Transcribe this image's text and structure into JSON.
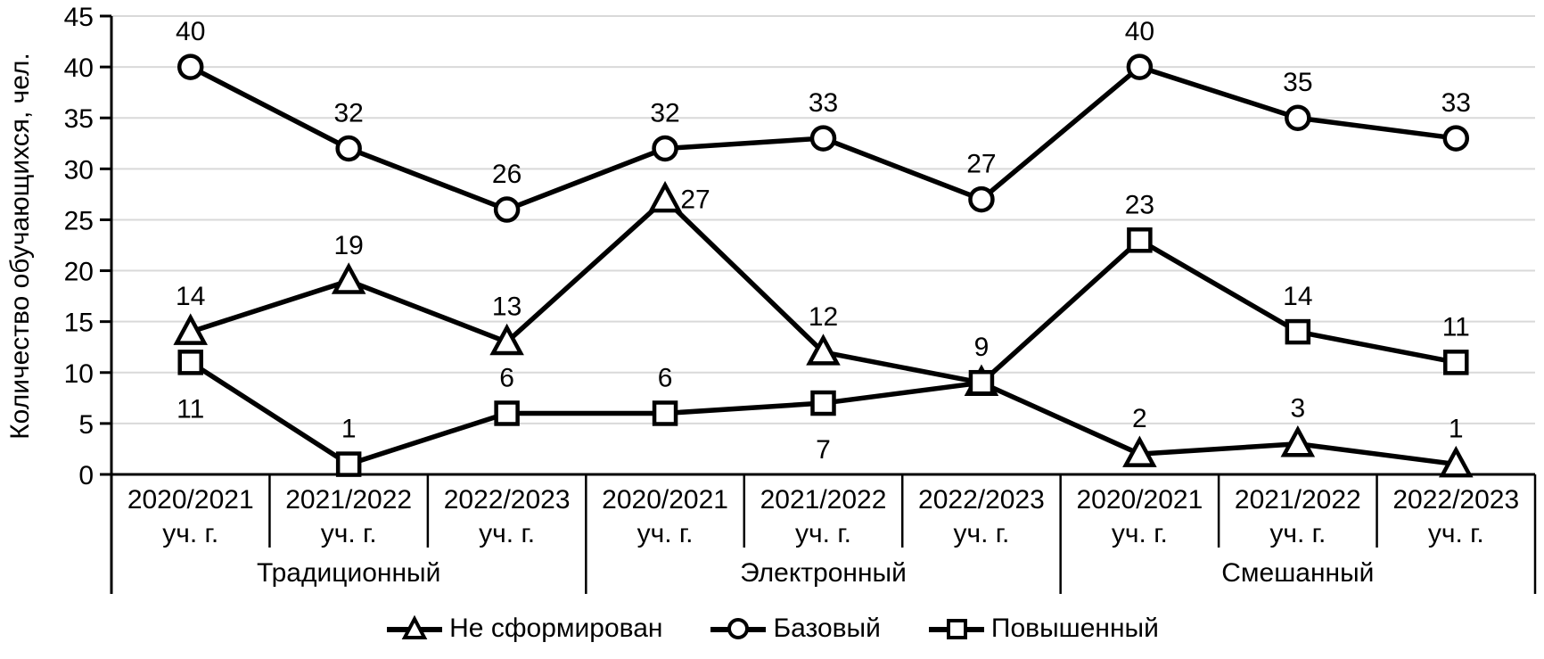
{
  "chart_data": {
    "type": "line",
    "title": "",
    "ylabel": "Количество обучающихся, чел.",
    "xlabel": "",
    "ylim": [
      0,
      45
    ],
    "ytick_step": 5,
    "y_tick_labels": [
      0,
      5,
      10,
      15,
      20,
      25,
      30,
      35,
      40,
      45
    ],
    "grid": true,
    "legend_position": "bottom",
    "groups": [
      {
        "label": "Традиционный",
        "span": 3
      },
      {
        "label": "Электронный",
        "span": 3
      },
      {
        "label": "Смешанный",
        "span": 3
      }
    ],
    "categories": [
      {
        "line1": "2020/2021",
        "line2": "уч. г."
      },
      {
        "line1": "2021/2022",
        "line2": "уч. г."
      },
      {
        "line1": "2022/2023",
        "line2": "уч. г."
      },
      {
        "line1": "2020/2021",
        "line2": "уч. г."
      },
      {
        "line1": "2021/2022",
        "line2": "уч. г."
      },
      {
        "line1": "2022/2023",
        "line2": "уч. г."
      },
      {
        "line1": "2020/2021",
        "line2": "уч. г."
      },
      {
        "line1": "2021/2022",
        "line2": "уч. г."
      },
      {
        "line1": "2022/2023",
        "line2": "уч. г."
      }
    ],
    "series": [
      {
        "name": "Не сформирован",
        "marker": "triangle",
        "values": [
          14,
          19,
          13,
          27,
          12,
          9,
          2,
          3,
          1
        ],
        "labels": [
          "14",
          "19",
          "13",
          "27",
          "12",
          "",
          "2",
          "3",
          "1"
        ],
        "label_overrides": {
          "3": {
            "dx": 34,
            "dy": 10
          }
        }
      },
      {
        "name": "Базовый",
        "marker": "circle",
        "values": [
          40,
          32,
          26,
          32,
          33,
          27,
          40,
          35,
          33
        ],
        "labels": [
          "40",
          "32",
          "26",
          "32",
          "33",
          "27",
          "40",
          "35",
          "33"
        ],
        "label_overrides": {}
      },
      {
        "name": "Повышенный",
        "marker": "square",
        "values": [
          11,
          1,
          6,
          6,
          7,
          9,
          23,
          14,
          11
        ],
        "labels": [
          "11",
          "1",
          "6",
          "6",
          "7",
          "9",
          "23",
          "14",
          "11"
        ],
        "label_overrides": {
          "0": {
            "below": true
          },
          "4": {
            "below": true
          }
        }
      }
    ],
    "colors": {
      "line": "#000000",
      "marker_fill": "#ffffff",
      "gridline": "#d9d9d9",
      "axis": "#000000",
      "text": "#000000",
      "background": "#ffffff"
    }
  }
}
